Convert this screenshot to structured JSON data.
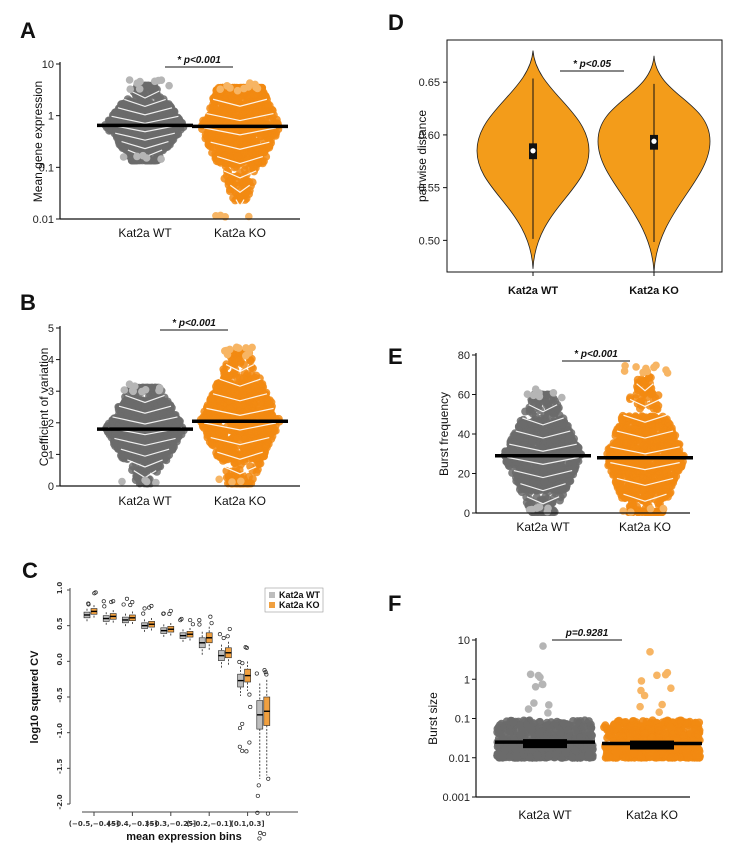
{
  "colors": {
    "wt": "#6b6b6b",
    "wt_light": "#b5b5b5",
    "ko": "#f28a12",
    "ko_light": "#f7b564",
    "wt_box": "#bdbdbd",
    "ko_box": "#f0a040"
  },
  "chart_data": [
    {
      "panel": "A",
      "type": "scatter",
      "scale": "log",
      "ylabel": "Mean gene expression",
      "ticks": [
        "10",
        "1",
        "0.1",
        "0.01"
      ],
      "categories": [
        "Kat2a WT",
        "Kat2a KO"
      ],
      "ylim": [
        0.01,
        10
      ],
      "series": [
        {
          "name": "Kat2a WT",
          "median": 0.65,
          "min": 0.13,
          "max": 5.0
        },
        {
          "name": "Kat2a KO",
          "median": 0.62,
          "min": 0.011,
          "max": 4.5
        }
      ],
      "annotation": "* p<0.001"
    },
    {
      "panel": "B",
      "type": "scatter",
      "ylabel": "Coefficient of variation",
      "ticks": [
        "0",
        "1",
        "2",
        "3",
        "4",
        "5"
      ],
      "categories": [
        "Kat2a WT",
        "Kat2a KO"
      ],
      "ylim": [
        0,
        5
      ],
      "series": [
        {
          "name": "Kat2a WT",
          "median": 1.8,
          "min": 0.05,
          "max": 3.3
        },
        {
          "name": "Kat2a KO",
          "median": 2.05,
          "min": 0.05,
          "max": 4.4
        }
      ],
      "annotation": "* p<0.001"
    },
    {
      "panel": "C",
      "type": "box",
      "ylabel": "log10 squared CV",
      "xlabel": "mean expression bins",
      "ticks": [
        "1.0",
        "0.5",
        "0.0",
        "-0.5",
        "-1.0",
        "-1.5",
        "-2.0"
      ],
      "xticks": [
        "(−0.5,−0.45]",
        "(−0.4,−0.35]",
        "(−0.3,−0.25]",
        "(−0.2,−0.1]",
        "(0.1,0.3]"
      ],
      "ylim": [
        -2.0,
        1.0
      ],
      "legend": [
        "Kat2a WT",
        "Kat2a KO"
      ],
      "legend_position": "top-right",
      "wt_medians": [
        0.65,
        0.6,
        0.58,
        0.5,
        0.43,
        0.36,
        0.26,
        0.08,
        -0.27,
        -0.75
      ],
      "ko_medians": [
        0.7,
        0.63,
        0.61,
        0.52,
        0.45,
        0.38,
        0.33,
        0.12,
        -0.2,
        -0.7
      ]
    },
    {
      "panel": "D",
      "type": "violin",
      "ylabel": "pairwise distance",
      "ticks": [
        "0.65",
        "0.60",
        "0.55",
        "0.50"
      ],
      "categories": [
        "Kat2a WT",
        "Kat2a KO"
      ],
      "ylim": [
        0.47,
        0.69
      ],
      "series": [
        {
          "name": "Kat2a WT",
          "median": 0.585,
          "q1": 0.577,
          "q3": 0.592,
          "min": 0.473,
          "max": 0.68
        },
        {
          "name": "Kat2a KO",
          "median": 0.594,
          "q1": 0.586,
          "q3": 0.6,
          "min": 0.47,
          "max": 0.675
        }
      ],
      "annotation": "* p<0.05"
    },
    {
      "panel": "E",
      "type": "scatter",
      "ylabel": "Burst frequency",
      "ticks": [
        "80",
        "60",
        "40",
        "20",
        "0"
      ],
      "categories": [
        "Kat2a WT",
        "Kat2a KO"
      ],
      "ylim": [
        0,
        80
      ],
      "series": [
        {
          "name": "Kat2a WT",
          "median": 29,
          "min": 0,
          "max": 63
        },
        {
          "name": "Kat2a KO",
          "median": 28,
          "min": 0,
          "max": 75
        }
      ],
      "annotation": "* p<0.001"
    },
    {
      "panel": "F",
      "type": "scatter",
      "scale": "log",
      "ylabel": "Burst size",
      "ticks": [
        "10",
        "1",
        "0.1",
        "0.01",
        "0.001"
      ],
      "categories": [
        "Kat2a WT",
        "Kat2a KO"
      ],
      "ylim": [
        0.001,
        10
      ],
      "series": [
        {
          "name": "Kat2a WT",
          "median": 0.025,
          "min": 0.01,
          "max": 7
        },
        {
          "name": "Kat2a KO",
          "median": 0.023,
          "min": 0.01,
          "max": 5
        }
      ],
      "annotation": "p=0.9281"
    }
  ]
}
